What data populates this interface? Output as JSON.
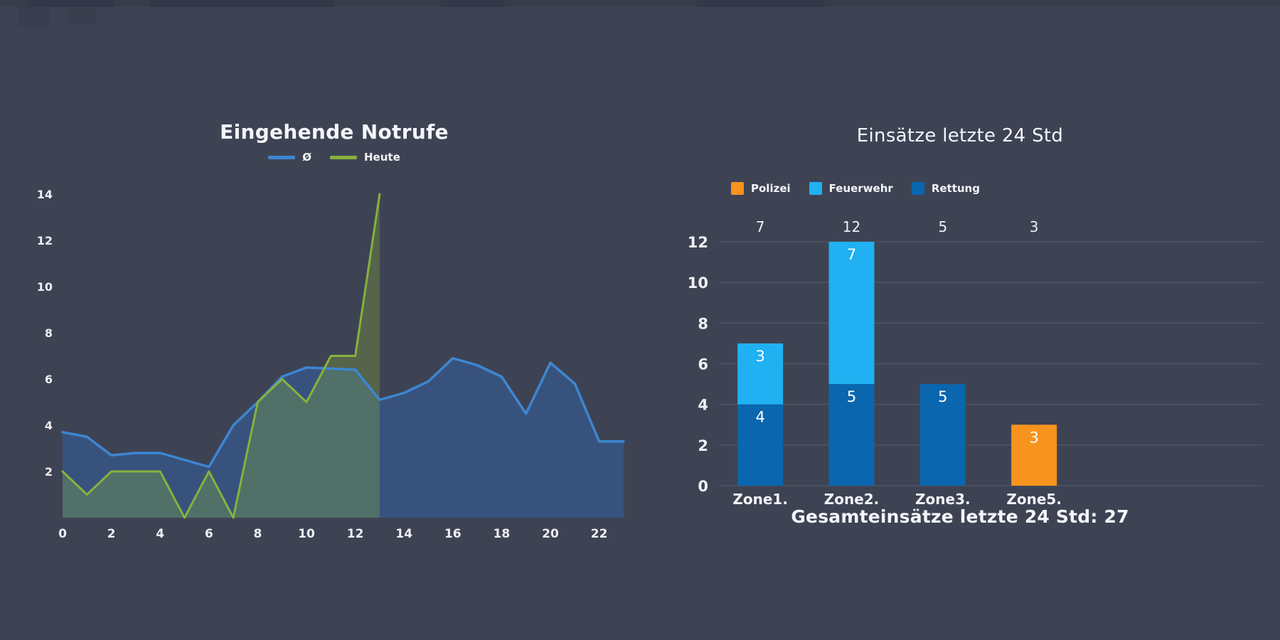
{
  "page": {
    "background_color": "#3e4354"
  },
  "left_chart": {
    "title": "Eingehende Notrufe"
  },
  "right_chart": {
    "title": "Einsätze letzte 24 Std",
    "footer": "Gesamteinsätze letzte 24 Std: 27"
  },
  "chart_data": [
    {
      "type": "area",
      "title": "Eingehende Notrufe",
      "xlabel": "",
      "ylabel": "",
      "x": [
        0,
        1,
        2,
        3,
        4,
        5,
        6,
        7,
        8,
        9,
        10,
        11,
        12,
        13,
        14,
        15,
        16,
        17,
        18,
        19,
        20,
        21,
        22,
        23
      ],
      "x_ticks": [
        0,
        2,
        4,
        6,
        8,
        10,
        12,
        14,
        16,
        18,
        20,
        22
      ],
      "y_ticks": [
        2,
        4,
        6,
        8,
        10,
        12,
        14
      ],
      "ylim": [
        0,
        14.5
      ],
      "grid": false,
      "legend_position": "top",
      "series": [
        {
          "name": "Ø",
          "color": "#3d86d2",
          "fill": "rgba(46,111,192,0.38)",
          "values": [
            3.7,
            3.5,
            2.7,
            2.8,
            2.8,
            2.5,
            2.2,
            4.0,
            5.0,
            6.1,
            6.5,
            6.45,
            6.4,
            5.1,
            5.4,
            5.9,
            6.9,
            6.6,
            6.1,
            4.5,
            6.7,
            5.8,
            3.3,
            3.3
          ]
        },
        {
          "name": "Heute",
          "color": "#86b23c",
          "fill": "rgba(139,179,57,0.30)",
          "values": [
            2,
            1,
            2,
            2,
            2,
            0,
            2,
            0,
            5,
            6,
            5,
            7,
            7,
            14
          ]
        }
      ]
    },
    {
      "type": "bar",
      "title": "Einsätze letzte 24 Std",
      "stacked": true,
      "categories": [
        "Zone1.",
        "Zone2.",
        "Zone3.",
        "Zone5."
      ],
      "series": [
        {
          "name": "Polizei",
          "color": "#f7941d",
          "values": [
            0,
            0,
            0,
            3
          ]
        },
        {
          "name": "Feuerwehr",
          "color": "#1fb1f2",
          "values": [
            3,
            7,
            0,
            0
          ]
        },
        {
          "name": "Rettung",
          "color": "#0a66ae",
          "values": [
            4,
            5,
            5,
            0
          ]
        }
      ],
      "stack_order_bottom_to_top": [
        "Rettung",
        "Feuerwehr",
        "Polizei"
      ],
      "totals": [
        7,
        12,
        5,
        3
      ],
      "y_ticks": [
        0,
        2,
        4,
        6,
        8,
        10,
        12
      ],
      "ylim": [
        0,
        13
      ],
      "grid": true,
      "legend_position": "top",
      "footer": "Gesamteinsätze letzte 24 Std: 27"
    }
  ]
}
